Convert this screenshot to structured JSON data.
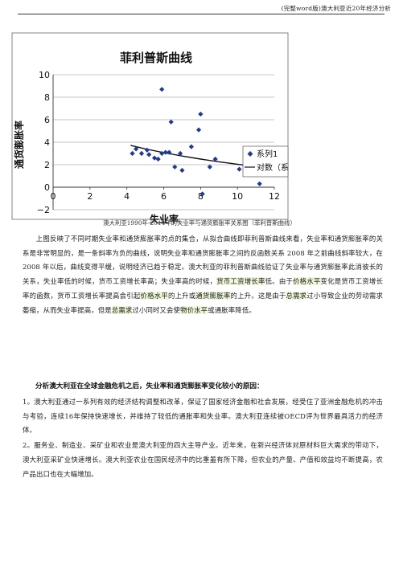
{
  "header": {
    "text": "(完整word版)澳大利亚近20年经济分析"
  },
  "chart_data": {
    "type": "scatter",
    "title": "菲利普斯曲线",
    "xlabel": "失业率",
    "ylabel": "通货膨胀率",
    "xlim": [
      0,
      12
    ],
    "ylim": [
      -2,
      10
    ],
    "x_ticks": [
      "0",
      "2",
      "4",
      "6",
      "8",
      "10",
      "12"
    ],
    "y_ticks": [
      "10",
      "8",
      "6",
      "4",
      "2",
      "0",
      "−2"
    ],
    "legend_position": "right",
    "series": [
      {
        "name": "系列1",
        "points": [
          [
            5.9,
            8.7
          ],
          [
            6.4,
            5.8
          ],
          [
            8.0,
            6.5
          ],
          [
            7.9,
            5.1
          ],
          [
            4.3,
            3.0
          ],
          [
            4.5,
            3.4
          ],
          [
            4.8,
            3.0
          ],
          [
            5.1,
            3.3
          ],
          [
            5.2,
            2.9
          ],
          [
            5.5,
            2.6
          ],
          [
            5.7,
            2.5
          ],
          [
            5.9,
            3.0
          ],
          [
            6.1,
            3.1
          ],
          [
            6.3,
            3.1
          ],
          [
            6.6,
            1.8
          ],
          [
            6.9,
            3.0
          ],
          [
            7.0,
            1.5
          ],
          [
            7.5,
            3.6
          ],
          [
            8.5,
            1.8
          ],
          [
            8.8,
            2.5
          ],
          [
            10.1,
            1.6
          ],
          [
            10.9,
            1.8
          ],
          [
            11.2,
            0.3
          ],
          [
            8.1,
            -0.6
          ]
        ]
      },
      {
        "name": "对数（系列1）",
        "kind": "trendline",
        "points": [
          [
            4.2,
            3.72
          ],
          [
            5.0,
            3.41
          ],
          [
            6.0,
            3.07
          ],
          [
            7.0,
            2.77
          ],
          [
            8.0,
            2.5
          ],
          [
            9.0,
            2.26
          ],
          [
            10.0,
            2.04
          ],
          [
            11.0,
            1.83
          ]
        ]
      }
    ],
    "legend": [
      "系列1",
      "对数（系列1"
    ]
  },
  "caption": "澳大利亚1990年-2014年的失业率与通货膨胀率关系图（菲利普斯曲线）",
  "paragraph1": {
    "a": "上图反映了不同时期失业率和通货膨胀率的点的集合，从拟合曲线即菲利普斯曲线来看，失业率和通货膨胀率的关系是非常明显的，是一条斜率为负的曲线，说明失业率和通货膨胀率之间的反函数关系 2008 年之前曲线斜率较大，在 2008 年以后，曲线变得平缓，说明经济已趋于稳定。澳大利亚的菲利普斯曲线验证了失业率与通货膨胀率此消彼长的关系，失业率低的时候，货币工资增长率高；失业率高的时候，",
    "h1": "货币工资增长率",
    "b": "低。由于",
    "h2": "价格水平",
    "c": "变化是货币工资增长率的函数，货币工资增长率提高会引起",
    "h3": "价格水平",
    "d": "的上升或",
    "h4": "通货膨胀率",
    "e": "的上升。这是由于",
    "h5": "总需求",
    "f": "过小导致企业的劳动需求萎缩，从而失业率提高，但是",
    "h6": "总需求",
    "g": "过小同时又会使",
    "h7": "物价水平",
    "h": "或通胀率降低。"
  },
  "heading": "分析澳大利亚在全球金融危机之后，失业率和通货膨胀率变化较小的原因：",
  "item1": "1。澳大利亚通过一系列有效的经济结构调整和改革，保证了国家经济金融和社会发展，经受住了亚洲金融危机的冲击与考验，连续16年保持快速增长，并维持了较低的通胀率和失业率。澳大利亚连续被OECD评为世界最具活力的经济体。",
  "item2": "2。服务业、制造业、采矿业和农业是澳大利亚的四大主导产业。近年来，在新兴经济体对原材料巨大需求的带动下，澳大利亚采矿业快速增长。澳大利亚农业在国民经济中的比重虽有所下降，但农业的产量、产值和效益均不断提高，农产品出口也在大幅增加。"
}
